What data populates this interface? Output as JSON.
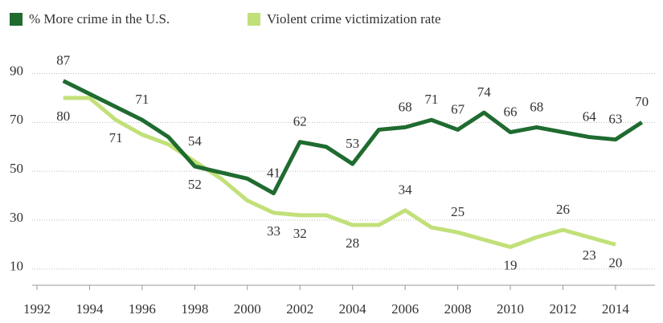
{
  "chart_data": {
    "type": "line",
    "series": [
      {
        "name": "% More crime in the U.S.",
        "color": "#1f6b30",
        "x": [
          1993,
          1996,
          1997,
          1998,
          2000,
          2001,
          2002,
          2003,
          2004,
          2005,
          2006,
          2007,
          2008,
          2009,
          2010,
          2011,
          2013,
          2014,
          2015
        ],
        "values": [
          87,
          71,
          64,
          52,
          47,
          41,
          62,
          60,
          53,
          67,
          68,
          71,
          67,
          74,
          66,
          68,
          64,
          63,
          70
        ],
        "value_labels": [
          "87",
          "71",
          null,
          "52",
          null,
          "41",
          "62",
          null,
          "53",
          null,
          "68",
          "71",
          "67",
          "74",
          "66",
          "68",
          "64",
          "63",
          "70"
        ]
      },
      {
        "name": "Violent crime victimization rate",
        "color": "#c2e07a",
        "x": [
          1993,
          1994,
          1995,
          1996,
          1997,
          1998,
          1999,
          2000,
          2001,
          2002,
          2003,
          2004,
          2005,
          2006,
          2007,
          2008,
          2009,
          2010,
          2011,
          2012,
          2013,
          2014
        ],
        "values": [
          80,
          80,
          71,
          65,
          61,
          54,
          47,
          38,
          33,
          32,
          32,
          28,
          28,
          34,
          27,
          25,
          22,
          19,
          23,
          26,
          23,
          20
        ],
        "value_labels": [
          "80",
          null,
          "71",
          null,
          null,
          "54",
          null,
          null,
          "33",
          "32",
          null,
          "28",
          null,
          "34",
          null,
          "25",
          null,
          "19",
          null,
          "26",
          "23",
          "20"
        ]
      }
    ],
    "xlim": [
      1990.9,
      2015.5
    ],
    "xticks": [
      1992,
      1994,
      1996,
      1998,
      2000,
      2002,
      2004,
      2006,
      2008,
      2010,
      2012,
      2014
    ],
    "ylim": [
      5,
      102
    ],
    "yticks": [
      10,
      30,
      50,
      70,
      90
    ],
    "grid": true
  }
}
